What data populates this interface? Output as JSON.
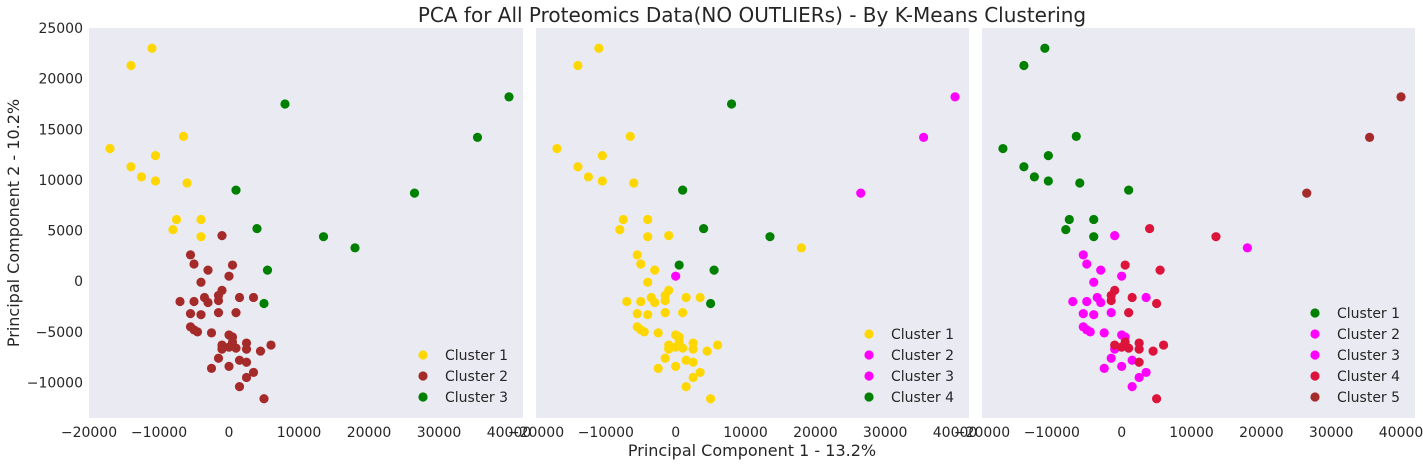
{
  "figure": {
    "title": "PCA for All Proteomics Data(NO OUTLIERs) - By K-Means Clustering",
    "xlabel": "Principal Component 1 - 13.2%",
    "ylabel": "Principal Component 2 - 10.2%",
    "background": "#EAEAF2",
    "colors": {
      "gold": "#FFD700",
      "brown": "#A52A2A",
      "green": "#008000",
      "magenta": "#FF00FF",
      "crimson": "#DC143C"
    }
  },
  "chart_data": [
    {
      "type": "scatter",
      "xlim": [
        -20000,
        42000
      ],
      "ylim": [
        -13500,
        25000
      ],
      "xticks": [
        -20000,
        -10000,
        0,
        10000,
        20000,
        30000,
        40000
      ],
      "xtick_labels": [
        "−20000",
        "−10000",
        "0",
        "10000",
        "20000",
        "30000",
        "40000"
      ],
      "yticks": [
        -10000,
        -5000,
        0,
        5000,
        10000,
        15000,
        20000,
        25000
      ],
      "ytick_labels": [
        "−10000",
        "−5000",
        "0",
        "5000",
        "10000",
        "15000",
        "20000",
        "25000"
      ],
      "legend_position": "bottom-right",
      "series": [
        {
          "name": "Cluster 1",
          "color": "#FFD700",
          "points": [
            [
              -11000,
              23000
            ],
            [
              -14000,
              21300
            ],
            [
              -17000,
              13100
            ],
            [
              -6500,
              14300
            ],
            [
              -10500,
              12400
            ],
            [
              -14000,
              11300
            ],
            [
              -12500,
              10300
            ],
            [
              -10500,
              9900
            ],
            [
              -6000,
              9700
            ],
            [
              -7500,
              6100
            ],
            [
              -4000,
              6100
            ],
            [
              -8000,
              5100
            ],
            [
              -4000,
              4400
            ]
          ]
        },
        {
          "name": "Cluster 2",
          "color": "#A52A2A",
          "points": [
            [
              -1000,
              4500
            ],
            [
              -5500,
              2600
            ],
            [
              -5000,
              1700
            ],
            [
              -3000,
              1100
            ],
            [
              500,
              1600
            ],
            [
              0,
              500
            ],
            [
              -4000,
              -100
            ],
            [
              -1000,
              -900
            ],
            [
              -1500,
              -1400
            ],
            [
              -7000,
              -2000
            ],
            [
              -5000,
              -2000
            ],
            [
              -3500,
              -1600
            ],
            [
              -3000,
              -2100
            ],
            [
              -1500,
              -1900
            ],
            [
              1500,
              -1600
            ],
            [
              3500,
              -1600
            ],
            [
              -5500,
              -3200
            ],
            [
              -4000,
              -3300
            ],
            [
              -1500,
              -3100
            ],
            [
              1000,
              -3100
            ],
            [
              -5500,
              -4500
            ],
            [
              -5000,
              -4800
            ],
            [
              -4500,
              -5000
            ],
            [
              -2500,
              -5100
            ],
            [
              0,
              -5300
            ],
            [
              500,
              -5500
            ],
            [
              -1000,
              -6300
            ],
            [
              500,
              -6000
            ],
            [
              2500,
              -6100
            ],
            [
              -1000,
              -6700
            ],
            [
              0,
              -6500
            ],
            [
              1000,
              -6600
            ],
            [
              2500,
              -6700
            ],
            [
              4500,
              -6900
            ],
            [
              6000,
              -6300
            ],
            [
              -1500,
              -7600
            ],
            [
              1500,
              -7800
            ],
            [
              2500,
              -8000
            ],
            [
              0,
              -8400
            ],
            [
              -2500,
              -8600
            ],
            [
              3500,
              -9000
            ],
            [
              2500,
              -9500
            ],
            [
              1500,
              -10400
            ],
            [
              5000,
              -11600
            ]
          ]
        },
        {
          "name": "Cluster 3",
          "color": "#008000",
          "points": [
            [
              8000,
              17500
            ],
            [
              40000,
              18200
            ],
            [
              35500,
              14200
            ],
            [
              26500,
              8700
            ],
            [
              1000,
              9000
            ],
            [
              4000,
              5200
            ],
            [
              13500,
              4400
            ],
            [
              18000,
              3300
            ],
            [
              5500,
              1100
            ],
            [
              5000,
              -2200
            ]
          ]
        }
      ]
    },
    {
      "type": "scatter",
      "xlim": [
        -20000,
        42000
      ],
      "ylim": [
        -13500,
        25000
      ],
      "xticks": [
        -20000,
        -10000,
        0,
        10000,
        20000,
        30000,
        40000
      ],
      "xtick_labels": [
        "−20000",
        "−10000",
        "0",
        "10000",
        "20000",
        "30000",
        "40000"
      ],
      "legend_position": "bottom-right",
      "series": [
        {
          "name": "Cluster 1",
          "color": "#FFD700",
          "points": [
            [
              -11000,
              23000
            ],
            [
              -14000,
              21300
            ],
            [
              -17000,
              13100
            ],
            [
              -6500,
              14300
            ],
            [
              -10500,
              12400
            ],
            [
              -14000,
              11300
            ],
            [
              -12500,
              10300
            ],
            [
              -10500,
              9900
            ],
            [
              -6000,
              9700
            ],
            [
              -7500,
              6100
            ],
            [
              -4000,
              6100
            ],
            [
              -8000,
              5100
            ],
            [
              -4000,
              4400
            ],
            [
              -1000,
              4500
            ],
            [
              -5500,
              2600
            ],
            [
              -5000,
              1700
            ],
            [
              -3000,
              1100
            ],
            [
              -4000,
              -100
            ],
            [
              -1000,
              -900
            ],
            [
              -1500,
              -1400
            ],
            [
              -7000,
              -2000
            ],
            [
              -5000,
              -2000
            ],
            [
              -3500,
              -1600
            ],
            [
              -3000,
              -2100
            ],
            [
              -1500,
              -1900
            ],
            [
              1500,
              -1600
            ],
            [
              3500,
              -1600
            ],
            [
              -5500,
              -3200
            ],
            [
              -4000,
              -3300
            ],
            [
              -1500,
              -3100
            ],
            [
              1000,
              -3100
            ],
            [
              -5500,
              -4500
            ],
            [
              -5000,
              -4800
            ],
            [
              -4500,
              -5000
            ],
            [
              -2500,
              -5100
            ],
            [
              0,
              -5300
            ],
            [
              500,
              -5500
            ],
            [
              -1000,
              -6300
            ],
            [
              500,
              -6000
            ],
            [
              2500,
              -6100
            ],
            [
              -1000,
              -6700
            ],
            [
              0,
              -6500
            ],
            [
              1000,
              -6600
            ],
            [
              2500,
              -6700
            ],
            [
              4500,
              -6900
            ],
            [
              6000,
              -6300
            ],
            [
              -1500,
              -7600
            ],
            [
              1500,
              -7800
            ],
            [
              2500,
              -8000
            ],
            [
              0,
              -8400
            ],
            [
              -2500,
              -8600
            ],
            [
              3500,
              -9000
            ],
            [
              2500,
              -9500
            ],
            [
              1500,
              -10400
            ],
            [
              5000,
              -11600
            ],
            [
              18000,
              3300
            ]
          ]
        },
        {
          "name": "Cluster 2",
          "color": "#FF00FF",
          "points": [
            [
              40000,
              18200
            ],
            [
              35500,
              14200
            ],
            [
              26500,
              8700
            ],
            [
              0,
              500
            ]
          ]
        },
        {
          "name": "Cluster 3",
          "color": "#FF00FF",
          "points": []
        },
        {
          "name": "Cluster 4",
          "color": "#008000",
          "points": [
            [
              8000,
              17500
            ],
            [
              1000,
              9000
            ],
            [
              4000,
              5200
            ],
            [
              13500,
              4400
            ],
            [
              500,
              1600
            ],
            [
              5500,
              1100
            ],
            [
              5000,
              -2200
            ]
          ]
        }
      ]
    },
    {
      "type": "scatter",
      "xlim": [
        -20000,
        42000
      ],
      "ylim": [
        -13500,
        25000
      ],
      "xticks": [
        -20000,
        -10000,
        0,
        10000,
        20000,
        30000,
        40000
      ],
      "xtick_labels": [
        "−20000",
        "−10000",
        "0",
        "10000",
        "20000",
        "30000",
        "40000"
      ],
      "legend_position": "bottom-right",
      "series": [
        {
          "name": "Cluster 1",
          "color": "#008000",
          "points": [
            [
              -11000,
              23000
            ],
            [
              -14000,
              21300
            ],
            [
              -17000,
              13100
            ],
            [
              -6500,
              14300
            ],
            [
              -10500,
              12400
            ],
            [
              -14000,
              11300
            ],
            [
              -12500,
              10300
            ],
            [
              -10500,
              9900
            ],
            [
              -6000,
              9700
            ],
            [
              -7500,
              6100
            ],
            [
              -4000,
              6100
            ],
            [
              -8000,
              5100
            ],
            [
              -4000,
              4400
            ],
            [
              1000,
              9000
            ]
          ]
        },
        {
          "name": "Cluster 2",
          "color": "#FF00FF",
          "points": [
            [
              -1000,
              4500
            ],
            [
              -5500,
              2600
            ],
            [
              -5000,
              1700
            ],
            [
              -3000,
              1100
            ],
            [
              0,
              500
            ],
            [
              -4000,
              -100
            ],
            [
              -7000,
              -2000
            ],
            [
              -5000,
              -2000
            ],
            [
              -3500,
              -1600
            ],
            [
              -3000,
              -2100
            ],
            [
              -5500,
              -3200
            ],
            [
              -4000,
              -3300
            ],
            [
              -5500,
              -4500
            ],
            [
              -5000,
              -4800
            ],
            [
              -4500,
              -5000
            ],
            [
              -2500,
              -5100
            ],
            [
              -1500,
              -3100
            ],
            [
              0,
              -5300
            ],
            [
              500,
              -5500
            ],
            [
              -1000,
              -6700
            ],
            [
              -1500,
              -7600
            ],
            [
              1500,
              -7800
            ],
            [
              -2500,
              -8600
            ],
            [
              0,
              -8400
            ],
            [
              2500,
              -9500
            ],
            [
              3500,
              -9000
            ],
            [
              1500,
              -10400
            ],
            [
              18000,
              3300
            ],
            [
              3500,
              -1600
            ]
          ]
        },
        {
          "name": "Cluster 3",
          "color": "#FF00FF",
          "points": []
        },
        {
          "name": "Cluster 4",
          "color": "#DC143C",
          "points": [
            [
              4000,
              5200
            ],
            [
              13500,
              4400
            ],
            [
              500,
              1600
            ],
            [
              5500,
              1100
            ],
            [
              -1000,
              -900
            ],
            [
              -1500,
              -1400
            ],
            [
              -1500,
              -1900
            ],
            [
              1500,
              -1600
            ],
            [
              5000,
              -2200
            ],
            [
              1000,
              -3100
            ],
            [
              -1000,
              -6300
            ],
            [
              500,
              -6000
            ],
            [
              0,
              -6500
            ],
            [
              1000,
              -6600
            ],
            [
              2500,
              -6100
            ],
            [
              2500,
              -6700
            ],
            [
              4500,
              -6900
            ],
            [
              6000,
              -6300
            ],
            [
              2500,
              -8000
            ],
            [
              5000,
              -11600
            ]
          ]
        },
        {
          "name": "Cluster 5",
          "color": "#A52A2A",
          "points": [
            [
              40000,
              18200
            ],
            [
              35500,
              14200
            ],
            [
              26500,
              8700
            ]
          ]
        }
      ]
    }
  ]
}
